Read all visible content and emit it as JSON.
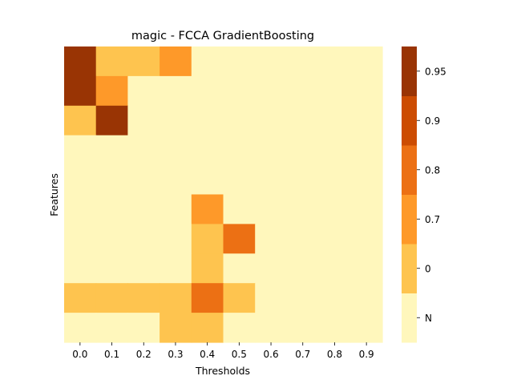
{
  "chart_data": {
    "type": "heatmap",
    "title": "magic - FCCA GradientBoosting",
    "xlabel": "Thresholds",
    "ylabel": "Features",
    "x_ticks": [
      "0.0",
      "0.1",
      "0.2",
      "0.3",
      "0.4",
      "0.5",
      "0.6",
      "0.7",
      "0.8",
      "0.9"
    ],
    "y_ticks": [],
    "row_count": 10,
    "levels": [
      {
        "label": "N",
        "color": "#fff7bc"
      },
      {
        "label": "0",
        "color": "#fec44f"
      },
      {
        "label": "0.7",
        "color": "#fe9929"
      },
      {
        "label": "0.8",
        "color": "#ec7014"
      },
      {
        "label": "0.9",
        "color": "#cc4c02"
      },
      {
        "label": "0.95",
        "color": "#993404"
      }
    ],
    "cells": [
      [
        "0.95",
        "0",
        "0",
        "0.7",
        "N",
        "N",
        "N",
        "N",
        "N",
        "N"
      ],
      [
        "0.95",
        "0.7",
        "N",
        "N",
        "N",
        "N",
        "N",
        "N",
        "N",
        "N"
      ],
      [
        "0",
        "0.95",
        "N",
        "N",
        "N",
        "N",
        "N",
        "N",
        "N",
        "N"
      ],
      [
        "N",
        "N",
        "N",
        "N",
        "N",
        "N",
        "N",
        "N",
        "N",
        "N"
      ],
      [
        "N",
        "N",
        "N",
        "N",
        "N",
        "N",
        "N",
        "N",
        "N",
        "N"
      ],
      [
        "N",
        "N",
        "N",
        "N",
        "0.7",
        "N",
        "N",
        "N",
        "N",
        "N"
      ],
      [
        "N",
        "N",
        "N",
        "N",
        "0",
        "0.8",
        "N",
        "N",
        "N",
        "N"
      ],
      [
        "N",
        "N",
        "N",
        "N",
        "0",
        "N",
        "N",
        "N",
        "N",
        "N"
      ],
      [
        "0",
        "0",
        "0",
        "0",
        "0.8",
        "0",
        "N",
        "N",
        "N",
        "N"
      ],
      [
        "N",
        "N",
        "N",
        "0",
        "0",
        "N",
        "N",
        "N",
        "N",
        "N"
      ]
    ],
    "colorbar_ticks": [
      "N",
      "0",
      "0.7",
      "0.8",
      "0.9",
      "0.95"
    ],
    "grid": false,
    "legend": "colorbar-right"
  }
}
